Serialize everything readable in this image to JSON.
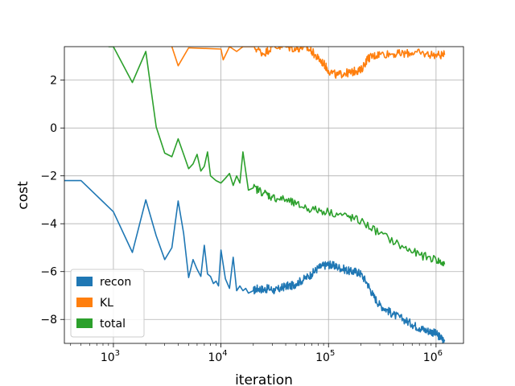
{
  "chart_data": {
    "type": "line",
    "xlabel": "iteration",
    "ylabel": "cost",
    "x_scale": "log",
    "xlim": [
      350,
      1800000
    ],
    "ylim": [
      -9.0,
      3.4
    ],
    "grid": true,
    "legend_position": "lower-left",
    "x_ticks": [
      {
        "value": 1000,
        "label": "10",
        "exp": "3"
      },
      {
        "value": 10000,
        "label": "10",
        "exp": "4"
      },
      {
        "value": 100000,
        "label": "10",
        "exp": "5"
      },
      {
        "value": 1000000,
        "label": "10",
        "exp": "6"
      }
    ],
    "y_ticks": [
      {
        "value": 2,
        "label": "2"
      },
      {
        "value": 0,
        "label": "0"
      },
      {
        "value": -2,
        "label": "−2"
      },
      {
        "value": -4,
        "label": "−4"
      },
      {
        "value": -6,
        "label": "−6"
      },
      {
        "value": -8,
        "label": "−8"
      }
    ],
    "series": [
      {
        "name": "recon",
        "color": "#1f77b4",
        "x": [
          350,
          500,
          1000,
          1500,
          2000,
          2500,
          3000,
          3500,
          4000,
          4500,
          5000,
          5500,
          6000,
          6500,
          7000,
          7500,
          8000,
          8500,
          9000,
          9500,
          10000,
          11000,
          12000,
          13000,
          14000,
          15000,
          16000,
          17000,
          18000,
          20000,
          22000,
          25000,
          28000,
          32000,
          36000,
          40000,
          45000,
          50000,
          60000,
          70000,
          80000,
          90000,
          100000,
          110000,
          120000,
          140000,
          160000,
          180000,
          200000,
          230000,
          260000,
          300000,
          350000,
          400000,
          500000,
          600000,
          700000,
          800000,
          900000,
          1000000,
          1100000,
          1200000
        ],
        "y": [
          -2.2,
          -2.2,
          -3.5,
          -5.2,
          -3.0,
          -4.5,
          -5.5,
          -5.0,
          -3.05,
          -4.4,
          -6.25,
          -5.5,
          -5.9,
          -6.2,
          -4.9,
          -6.1,
          -6.2,
          -6.5,
          -6.4,
          -6.6,
          -5.1,
          -6.3,
          -6.7,
          -5.4,
          -6.8,
          -6.6,
          -6.8,
          -6.7,
          -6.9,
          -6.8,
          -6.7,
          -6.75,
          -6.7,
          -6.8,
          -6.7,
          -6.6,
          -6.6,
          -6.5,
          -6.3,
          -6.1,
          -5.85,
          -5.75,
          -5.7,
          -5.75,
          -5.8,
          -5.9,
          -6.0,
          -6.0,
          -6.1,
          -6.5,
          -7.0,
          -7.4,
          -7.6,
          -7.8,
          -8.0,
          -8.2,
          -8.35,
          -8.45,
          -8.5,
          -8.6,
          -8.75,
          -8.9
        ]
      },
      {
        "name": "KL",
        "color": "#ff7f0e",
        "x": [
          3500,
          4000,
          5000,
          10000,
          10500,
          12000,
          14000,
          16000,
          20000,
          25000,
          30000,
          40000,
          50000,
          60000,
          70000,
          80000,
          90000,
          100000,
          120000,
          140000,
          160000,
          180000,
          200000,
          230000,
          260000,
          300000,
          400000,
          500000,
          600000,
          800000,
          1000000,
          1200000
        ],
        "y": [
          3.4,
          2.6,
          3.35,
          3.3,
          2.85,
          3.4,
          3.2,
          3.4,
          3.4,
          3.1,
          3.4,
          3.4,
          3.3,
          3.4,
          3.2,
          2.9,
          2.7,
          2.4,
          2.2,
          2.3,
          2.3,
          2.4,
          2.4,
          2.9,
          3.0,
          3.1,
          3.1,
          3.1,
          3.15,
          3.1,
          3.05,
          3.05
        ]
      },
      {
        "name": "total",
        "color": "#2ca02c",
        "x": [
          900,
          1000,
          1500,
          2000,
          2500,
          3000,
          3500,
          4000,
          4500,
          5000,
          5500,
          6000,
          6500,
          7000,
          7500,
          8000,
          9000,
          10000,
          11000,
          12000,
          13000,
          14000,
          15000,
          16000,
          18000,
          20000,
          25000,
          30000,
          40000,
          50000,
          70000,
          100000,
          150000,
          200000,
          300000,
          500000,
          700000,
          1000000,
          1200000
        ],
        "y": [
          3.4,
          3.4,
          1.9,
          3.2,
          0.05,
          -1.05,
          -1.2,
          -0.45,
          -1.1,
          -1.7,
          -1.5,
          -1.1,
          -1.8,
          -1.6,
          -1.0,
          -2.0,
          -2.2,
          -2.3,
          -2.1,
          -1.9,
          -2.4,
          -2.0,
          -2.3,
          -1.0,
          -2.6,
          -2.5,
          -2.7,
          -2.9,
          -3.0,
          -3.2,
          -3.4,
          -3.5,
          -3.7,
          -3.9,
          -4.4,
          -5.0,
          -5.3,
          -5.5,
          -5.7
        ]
      }
    ]
  }
}
